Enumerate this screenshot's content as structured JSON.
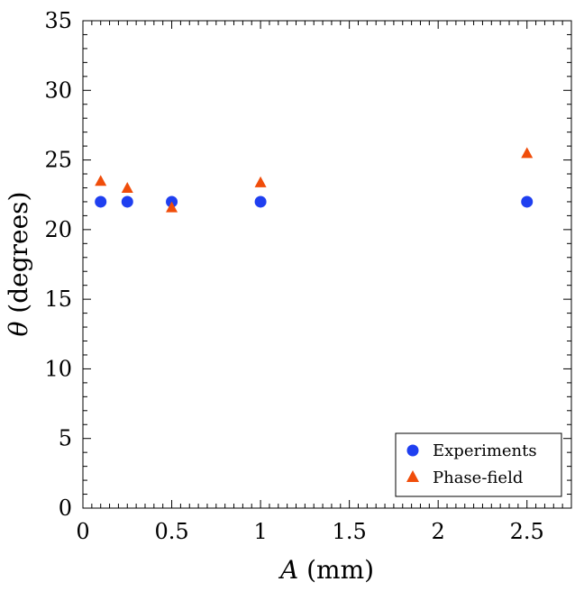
{
  "chart_data": {
    "type": "scatter",
    "title": "",
    "xlabel": "A (mm)",
    "xlabel_var": "A",
    "xlabel_unit": "(mm)",
    "ylabel": "θ (degrees)",
    "ylabel_var": "θ",
    "ylabel_unit": "(degrees)",
    "xlim": [
      0,
      2.75
    ],
    "ylim": [
      0,
      35
    ],
    "xticks": [
      0,
      0.5,
      1,
      1.5,
      2,
      2.5
    ],
    "xtick_labels": [
      "0",
      "0.5",
      "1",
      "1.5",
      "2",
      "2.5"
    ],
    "yticks": [
      0,
      5,
      10,
      15,
      20,
      25,
      30,
      35
    ],
    "ytick_labels": [
      "0",
      "5",
      "10",
      "15",
      "20",
      "25",
      "30",
      "35"
    ],
    "legend_position": "bottom-right",
    "grid": false,
    "series": [
      {
        "name": "Experiments",
        "marker": "circle",
        "color": "#1f3ff0",
        "x": [
          0.1,
          0.25,
          0.5,
          1,
          2.5
        ],
        "y": [
          22,
          22,
          22,
          22,
          22
        ]
      },
      {
        "name": "Phase-field",
        "marker": "triangle",
        "color": "#f04d0a",
        "x": [
          0.1,
          0.25,
          0.5,
          1,
          2.5
        ],
        "y": [
          23.5,
          23,
          21.6,
          23.4,
          25.5
        ]
      }
    ]
  }
}
